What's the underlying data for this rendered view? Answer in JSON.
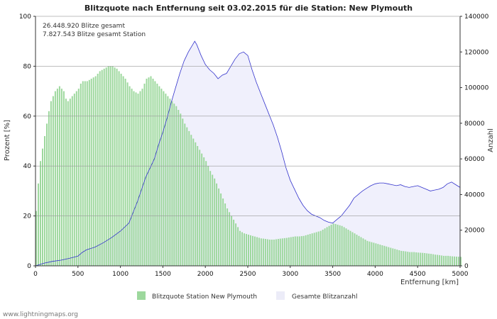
{
  "chart_data": {
    "type": "bar+area",
    "title": "Blitzquote nach Entfernung seit 03.02.2015 für die Station: New Plymouth",
    "xlabel": "Entfernung   [km]",
    "ylabel_left": "Prozent   [%]",
    "ylabel_right": "Anzahl",
    "xlim": [
      0,
      5000
    ],
    "ylim_left": [
      0,
      100
    ],
    "ylim_right": [
      0,
      140000
    ],
    "x_ticks": [
      0,
      500,
      1000,
      1500,
      2000,
      2500,
      3000,
      3500,
      4000,
      4500,
      5000
    ],
    "x_tick_labels": [
      "0",
      "500",
      "1000",
      "1500",
      "2000",
      "2500",
      "3000",
      "3500",
      "4000",
      "4500",
      "5000"
    ],
    "y_left_ticks": [
      0,
      20,
      40,
      60,
      80,
      100
    ],
    "y_left_tick_labels": [
      "0",
      "20",
      "40",
      "60",
      "80",
      "100"
    ],
    "y_right_ticks": [
      0,
      20000,
      40000,
      60000,
      80000,
      100000,
      120000,
      140000
    ],
    "y_right_tick_labels": [
      "0",
      "20000",
      "40000",
      "60000",
      "80000",
      "100000",
      "120000",
      "140000"
    ],
    "annotations": [
      "26.448.920 Blitze gesamt",
      "7.827.543 Blitze gesamt Station"
    ],
    "series": [
      {
        "name": "Blitzquote Station New Plymouth",
        "type": "bar",
        "axis": "left",
        "color": "#9dd89d",
        "x_step": 25,
        "points": [
          [
            0,
            22
          ],
          [
            25,
            33
          ],
          [
            50,
            42
          ],
          [
            75,
            47
          ],
          [
            100,
            52
          ],
          [
            125,
            57
          ],
          [
            150,
            62
          ],
          [
            175,
            66
          ],
          [
            200,
            68
          ],
          [
            225,
            70
          ],
          [
            250,
            71
          ],
          [
            275,
            72
          ],
          [
            300,
            71
          ],
          [
            325,
            70
          ],
          [
            350,
            67
          ],
          [
            375,
            66
          ],
          [
            400,
            67
          ],
          [
            425,
            68
          ],
          [
            450,
            69
          ],
          [
            475,
            70
          ],
          [
            500,
            71
          ],
          [
            525,
            73
          ],
          [
            550,
            74
          ],
          [
            575,
            74
          ],
          [
            600,
            74
          ],
          [
            650,
            75
          ],
          [
            700,
            76
          ],
          [
            750,
            78
          ],
          [
            800,
            79
          ],
          [
            850,
            80
          ],
          [
            900,
            80
          ],
          [
            950,
            79
          ],
          [
            1000,
            77
          ],
          [
            1050,
            75
          ],
          [
            1100,
            72
          ],
          [
            1150,
            70
          ],
          [
            1200,
            69
          ],
          [
            1250,
            71
          ],
          [
            1300,
            75
          ],
          [
            1350,
            76
          ],
          [
            1400,
            74
          ],
          [
            1450,
            72
          ],
          [
            1500,
            70
          ],
          [
            1550,
            68
          ],
          [
            1600,
            66
          ],
          [
            1650,
            64
          ],
          [
            1700,
            61
          ],
          [
            1750,
            57
          ],
          [
            1800,
            54
          ],
          [
            1850,
            51
          ],
          [
            1900,
            48
          ],
          [
            1950,
            45
          ],
          [
            2000,
            42
          ],
          [
            2050,
            38
          ],
          [
            2100,
            35
          ],
          [
            2150,
            31
          ],
          [
            2200,
            27
          ],
          [
            2250,
            23
          ],
          [
            2300,
            20
          ],
          [
            2350,
            17
          ],
          [
            2400,
            14
          ],
          [
            2450,
            13
          ],
          [
            2500,
            12.5
          ],
          [
            2550,
            12
          ],
          [
            2600,
            11.5
          ],
          [
            2650,
            11
          ],
          [
            2700,
            10.8
          ],
          [
            2750,
            10.5
          ],
          [
            2800,
            10.5
          ],
          [
            2850,
            10.8
          ],
          [
            2900,
            11
          ],
          [
            2950,
            11.2
          ],
          [
            3000,
            11.5
          ],
          [
            3050,
            11.8
          ],
          [
            3100,
            11.8
          ],
          [
            3150,
            12
          ],
          [
            3200,
            12.5
          ],
          [
            3250,
            13
          ],
          [
            3300,
            13.5
          ],
          [
            3350,
            14
          ],
          [
            3400,
            15
          ],
          [
            3450,
            16
          ],
          [
            3500,
            17
          ],
          [
            3550,
            16.5
          ],
          [
            3600,
            16
          ],
          [
            3650,
            15
          ],
          [
            3700,
            14
          ],
          [
            3750,
            13
          ],
          [
            3800,
            12
          ],
          [
            3850,
            11
          ],
          [
            3900,
            10
          ],
          [
            3950,
            9.5
          ],
          [
            4000,
            9
          ],
          [
            4050,
            8.5
          ],
          [
            4100,
            8
          ],
          [
            4150,
            7.5
          ],
          [
            4200,
            7
          ],
          [
            4250,
            6.5
          ],
          [
            4300,
            6
          ],
          [
            4350,
            5.8
          ],
          [
            4400,
            5.5
          ],
          [
            4450,
            5.5
          ],
          [
            4500,
            5.3
          ],
          [
            4550,
            5.2
          ],
          [
            4600,
            5
          ],
          [
            4650,
            4.8
          ],
          [
            4700,
            4.5
          ],
          [
            4750,
            4.3
          ],
          [
            4800,
            4
          ],
          [
            4850,
            4
          ],
          [
            4900,
            3.8
          ],
          [
            4950,
            3.7
          ],
          [
            5000,
            3.6
          ]
        ]
      },
      {
        "name": "Gesamte Blitzanzahl",
        "type": "area",
        "axis": "right",
        "color": "#f0f0fc",
        "line_color": "#3333cc",
        "points": [
          [
            0,
            0
          ],
          [
            100,
            1500
          ],
          [
            200,
            2500
          ],
          [
            300,
            3200
          ],
          [
            400,
            4200
          ],
          [
            500,
            5500
          ],
          [
            550,
            7500
          ],
          [
            600,
            9000
          ],
          [
            700,
            10500
          ],
          [
            800,
            13000
          ],
          [
            900,
            16000
          ],
          [
            1000,
            19500
          ],
          [
            1100,
            24000
          ],
          [
            1150,
            30000
          ],
          [
            1200,
            36000
          ],
          [
            1250,
            43000
          ],
          [
            1300,
            50000
          ],
          [
            1350,
            55000
          ],
          [
            1400,
            60000
          ],
          [
            1450,
            68000
          ],
          [
            1500,
            75000
          ],
          [
            1550,
            83000
          ],
          [
            1600,
            92000
          ],
          [
            1650,
            100000
          ],
          [
            1700,
            108000
          ],
          [
            1750,
            115000
          ],
          [
            1800,
            120000
          ],
          [
            1850,
            124000
          ],
          [
            1875,
            126000
          ],
          [
            1900,
            124000
          ],
          [
            1950,
            118000
          ],
          [
            2000,
            113000
          ],
          [
            2050,
            110000
          ],
          [
            2100,
            108000
          ],
          [
            2150,
            105000
          ],
          [
            2200,
            107000
          ],
          [
            2250,
            108000
          ],
          [
            2300,
            112000
          ],
          [
            2350,
            116000
          ],
          [
            2400,
            119000
          ],
          [
            2450,
            120000
          ],
          [
            2500,
            118000
          ],
          [
            2550,
            110000
          ],
          [
            2600,
            103000
          ],
          [
            2650,
            97000
          ],
          [
            2700,
            91000
          ],
          [
            2750,
            85000
          ],
          [
            2800,
            79000
          ],
          [
            2850,
            72000
          ],
          [
            2900,
            64000
          ],
          [
            2950,
            55000
          ],
          [
            3000,
            48000
          ],
          [
            3050,
            43000
          ],
          [
            3100,
            38000
          ],
          [
            3150,
            34000
          ],
          [
            3200,
            31000
          ],
          [
            3250,
            29000
          ],
          [
            3300,
            28000
          ],
          [
            3350,
            27000
          ],
          [
            3400,
            25500
          ],
          [
            3450,
            24500
          ],
          [
            3500,
            24000
          ],
          [
            3550,
            26000
          ],
          [
            3600,
            28000
          ],
          [
            3650,
            31000
          ],
          [
            3700,
            34000
          ],
          [
            3750,
            38000
          ],
          [
            3800,
            40000
          ],
          [
            3850,
            42000
          ],
          [
            3900,
            43500
          ],
          [
            3950,
            45000
          ],
          [
            4000,
            46000
          ],
          [
            4050,
            46500
          ],
          [
            4100,
            46500
          ],
          [
            4150,
            46000
          ],
          [
            4200,
            45500
          ],
          [
            4250,
            45000
          ],
          [
            4300,
            45500
          ],
          [
            4350,
            44500
          ],
          [
            4400,
            44000
          ],
          [
            4450,
            44500
          ],
          [
            4500,
            45000
          ],
          [
            4550,
            44000
          ],
          [
            4600,
            43000
          ],
          [
            4650,
            42000
          ],
          [
            4700,
            42500
          ],
          [
            4750,
            43000
          ],
          [
            4800,
            44000
          ],
          [
            4850,
            46000
          ],
          [
            4900,
            47000
          ],
          [
            4950,
            45500
          ],
          [
            5000,
            44000
          ]
        ]
      }
    ],
    "legend": [
      {
        "label": "Blitzquote Station New Plymouth",
        "color": "#9dd89d"
      },
      {
        "label": "Gesamte Blitzanzahl",
        "color": "#ececf8"
      }
    ],
    "grid_y": true
  },
  "footer": "www.lightningmaps.org"
}
